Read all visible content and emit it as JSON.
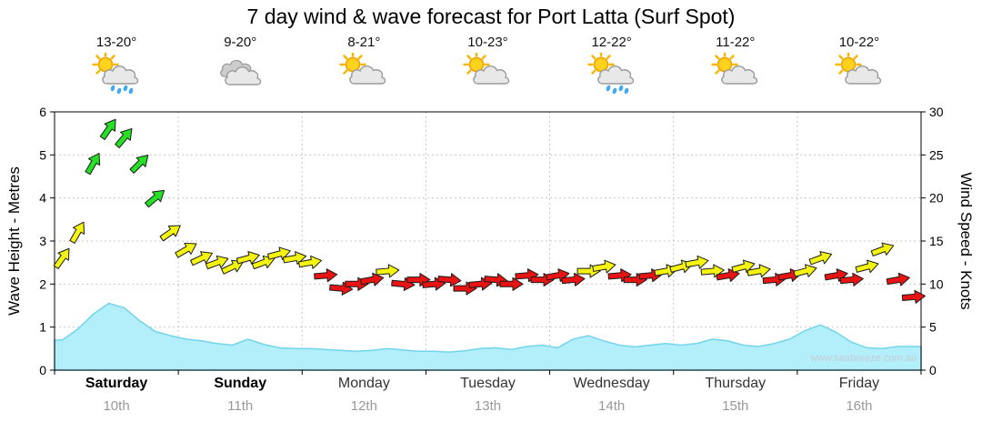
{
  "page": {
    "title": "7 day wind & wave forecast for Port Latta (Surf Spot)",
    "watermark": "www.seabreeze.com.au"
  },
  "axes": {
    "left_label": "Wave Height - Metres",
    "right_label": "Wind Speed - Knots",
    "left_ticks": [
      0,
      1,
      2,
      3,
      4,
      5,
      6
    ],
    "right_ticks": [
      0,
      5,
      10,
      15,
      20,
      25,
      30
    ]
  },
  "days": [
    {
      "name": "Saturday",
      "date": "10th",
      "temp": "13-20°",
      "icon": "sun-cloud-rain",
      "bold": true
    },
    {
      "name": "Sunday",
      "date": "11th",
      "temp": "9-20°",
      "icon": "clouds",
      "bold": true
    },
    {
      "name": "Monday",
      "date": "12th",
      "temp": "8-21°",
      "icon": "sun-cloud",
      "bold": false
    },
    {
      "name": "Tuesday",
      "date": "13th",
      "temp": "10-23°",
      "icon": "sun-cloud",
      "bold": false
    },
    {
      "name": "Wednesday",
      "date": "14th",
      "temp": "12-22°",
      "icon": "sun-cloud-rain",
      "bold": false
    },
    {
      "name": "Thursday",
      "date": "15th",
      "temp": "11-22°",
      "icon": "sun-cloud",
      "bold": false
    },
    {
      "name": "Friday",
      "date": "16th",
      "temp": "10-22°",
      "icon": "sun-cloud",
      "bold": false
    }
  ],
  "chart_data": {
    "type": "area+wind-arrows",
    "title": "7 day wind & wave forecast for Port Latta (Surf Spot)",
    "categories": [
      "Saturday 10th",
      "Sunday 11th",
      "Monday 12th",
      "Tuesday 13th",
      "Wednesday 14th",
      "Thursday 15th",
      "Friday 16th"
    ],
    "points_per_day": 8,
    "wave": {
      "name": "Wave Height",
      "unit": "metres",
      "ylim": [
        0,
        6
      ],
      "values": [
        0.7,
        0.95,
        1.3,
        1.55,
        1.45,
        1.15,
        0.9,
        0.8,
        0.72,
        0.68,
        0.62,
        0.58,
        0.72,
        0.6,
        0.52,
        0.5,
        0.5,
        0.48,
        0.46,
        0.44,
        0.46,
        0.5,
        0.47,
        0.44,
        0.44,
        0.42,
        0.45,
        0.5,
        0.52,
        0.48,
        0.55,
        0.58,
        0.52,
        0.72,
        0.8,
        0.68,
        0.58,
        0.54,
        0.58,
        0.62,
        0.58,
        0.62,
        0.72,
        0.68,
        0.58,
        0.55,
        0.62,
        0.72,
        0.92,
        1.05,
        0.88,
        0.65,
        0.52,
        0.5,
        0.55,
        0.55
      ]
    },
    "wind": {
      "name": "Wind Speed",
      "unit": "knots",
      "ylim": [
        0,
        30
      ],
      "speeds": [
        13,
        16,
        24,
        28,
        27,
        24,
        20,
        16,
        14,
        13,
        12.5,
        12,
        13,
        12.5,
        13.5,
        13,
        12.5,
        11,
        9.5,
        10,
        10.5,
        11.5,
        10,
        10.5,
        10,
        10.5,
        9.5,
        10,
        10.5,
        10,
        11,
        10.5,
        11,
        10.5,
        11.5,
        12,
        11,
        10.5,
        11,
        11.5,
        12,
        12.5,
        11.5,
        11,
        12,
        11.5,
        10.5,
        11,
        11.5,
        13,
        11,
        10.5,
        12,
        14,
        10.5,
        8.5
      ],
      "directions_deg": [
        55,
        60,
        60,
        55,
        50,
        45,
        40,
        35,
        30,
        25,
        20,
        25,
        15,
        20,
        15,
        10,
        10,
        5,
        -5,
        0,
        10,
        5,
        -5,
        0,
        5,
        -5,
        0,
        5,
        -5,
        0,
        5,
        0,
        10,
        5,
        0,
        10,
        5,
        0,
        5,
        10,
        15,
        10,
        5,
        10,
        15,
        10,
        5,
        10,
        15,
        20,
        10,
        5,
        15,
        20,
        10,
        5
      ]
    },
    "color_thresholds": {
      "green_min_knots": 19.5,
      "yellow_min_knots": 11.5
    },
    "colors": {
      "wave_fill": "#b3eefb",
      "wave_stroke": "#72d4ec",
      "arrow_green": "#26e026",
      "arrow_yellow": "#f4f410",
      "arrow_red": "#e81414",
      "arrow_outline": "#1a1a1a",
      "grid": "#c8c8c8",
      "axis": "#000000"
    },
    "legend": "off",
    "grid": "dotted horizontal each metre / 5 knots, dotted vertical each day"
  }
}
